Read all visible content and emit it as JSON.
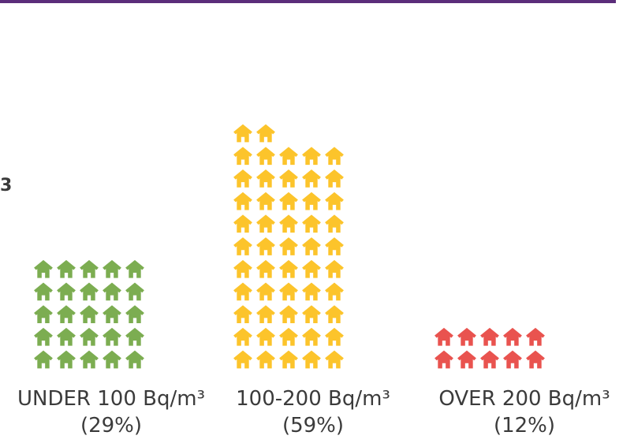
{
  "chart_data": {
    "type": "pictogram",
    "unit_icon": "house-icon",
    "icons_per_row": 5,
    "categories": [
      "UNDER 100 Bq/m³",
      "100-200 Bq/m³",
      "OVER 200 Bq/m³"
    ],
    "percent_labels": [
      "(29%)",
      "(59%)",
      "(12%)"
    ],
    "values": [
      25,
      52,
      10
    ],
    "colors": [
      "#7cad51",
      "#fcc42b",
      "#e9534f"
    ]
  },
  "page": {
    "left_fragment": "3"
  }
}
